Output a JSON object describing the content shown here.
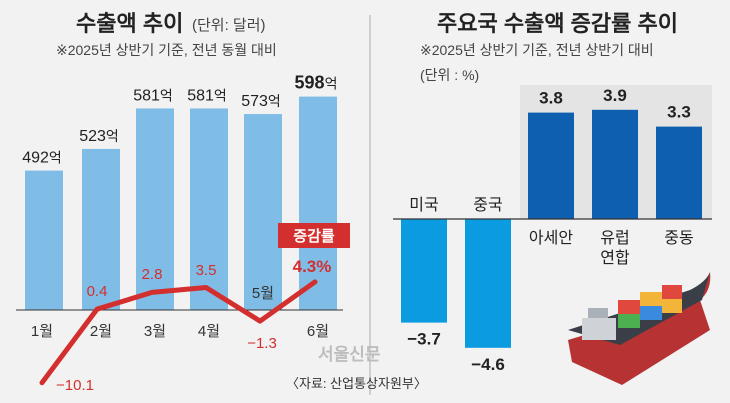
{
  "chart_data": [
    {
      "type": "bar",
      "title": "수출액 추이",
      "unit_note": "(단위: 달러)",
      "subtitle": "※2025년 상반기 기준, 전년 동월 대비",
      "categories": [
        "1월",
        "2월",
        "3월",
        "4월",
        "5월",
        "6월"
      ],
      "values": [
        492,
        523,
        581,
        581,
        573,
        598
      ],
      "value_suffix": "억",
      "bar_color": "#7fbde6",
      "line_series": {
        "name": "증감률",
        "values": [
          -10.1,
          0.4,
          2.8,
          3.5,
          -1.3,
          4.3
        ],
        "labels": [
          "−10.1",
          "0.4",
          "2.8",
          "3.5",
          "−1.3",
          "4.3%"
        ],
        "color": "#d32f2f"
      }
    },
    {
      "type": "bar",
      "title": "주요국 수출액 증감률 추이",
      "subtitle": "※2025년 상반기 기준, 전년 상반기 대비",
      "unit_note": "(단위 : %)",
      "categories": [
        "미국",
        "중국",
        "아세안",
        "유럽 연합",
        "중동"
      ],
      "category_lines": [
        [
          "미국"
        ],
        [
          "중국"
        ],
        [
          "아세안"
        ],
        [
          "유럽",
          "연합"
        ],
        [
          "중동"
        ]
      ],
      "values": [
        -3.7,
        -4.6,
        3.8,
        3.9,
        3.3
      ],
      "labels": [
        "−3.7",
        "−4.6",
        "3.8",
        "3.9",
        "3.3"
      ],
      "negative_color": "#0a9be0",
      "positive_color": "#0e5fb0"
    }
  ],
  "footer": {
    "logo": "서울신문",
    "source": "〈자료: 산업통상자원부〉"
  }
}
